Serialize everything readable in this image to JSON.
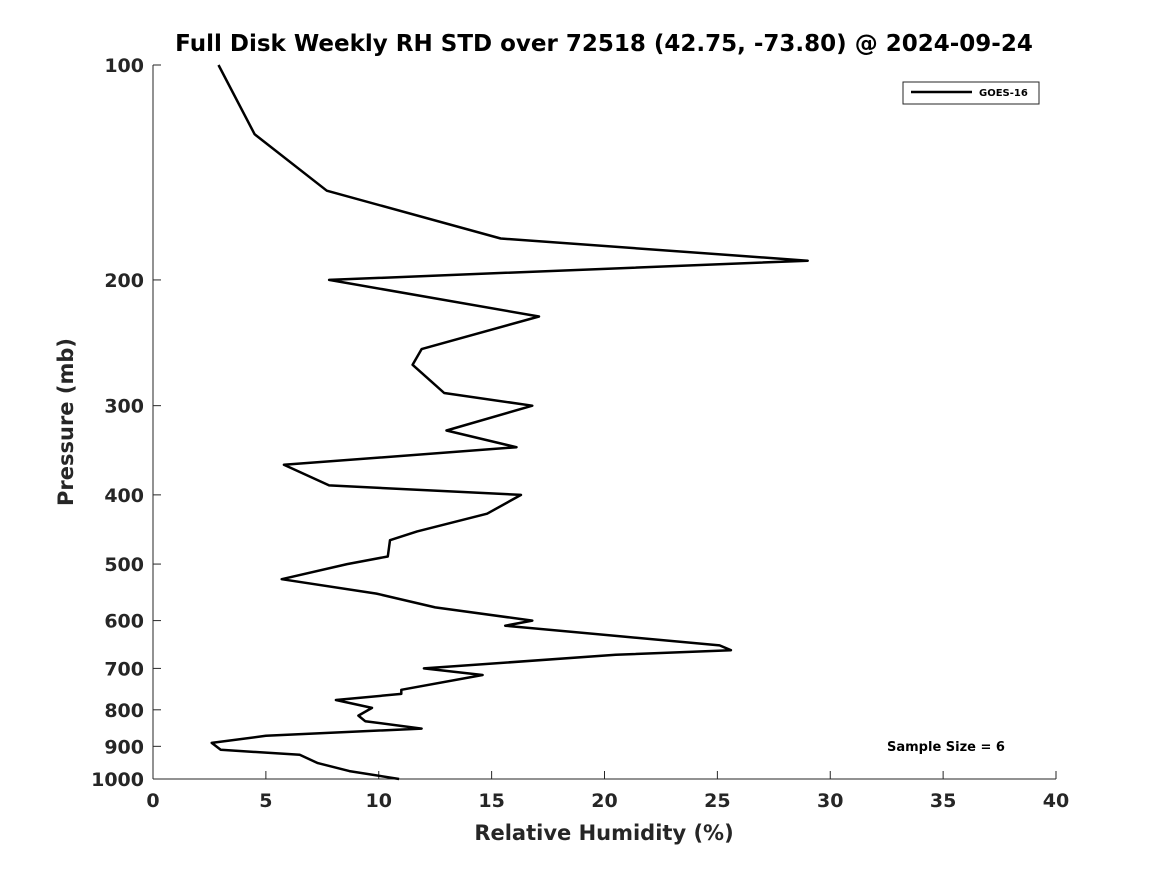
{
  "chart_data": {
    "type": "line",
    "title": "Full Disk Weekly RH STD over 72518 (42.75, -73.80) @ 2024-09-24",
    "xlabel": "Relative Humidity (%)",
    "ylabel": "Pressure (mb)",
    "xlim": [
      0,
      40
    ],
    "ylim": [
      100,
      1000
    ],
    "yscale": "log",
    "y_reversed": true,
    "xticks": [
      "0",
      "5",
      "10",
      "15",
      "20",
      "25",
      "30",
      "35",
      "40"
    ],
    "xtick_values": [
      0,
      5,
      10,
      15,
      20,
      25,
      30,
      35,
      40
    ],
    "yticks": [
      "100",
      "200",
      "300",
      "400",
      "500",
      "600",
      "700",
      "800",
      "900",
      "1000"
    ],
    "ytick_values": [
      100,
      200,
      300,
      400,
      500,
      600,
      700,
      800,
      900,
      1000
    ],
    "grid": false,
    "legend_position": "top-right",
    "series": [
      {
        "name": "GOES-16",
        "color": "#000000",
        "x": [
          2.9,
          4.5,
          7.7,
          15.4,
          29.0,
          7.8,
          17.1,
          11.9,
          11.5,
          12.9,
          16.8,
          13.0,
          16.1,
          5.8,
          7.8,
          16.3,
          14.8,
          11.7,
          10.5,
          10.4,
          8.6,
          5.7,
          9.9,
          12.5,
          16.8,
          15.6,
          25.1,
          25.6,
          20.5,
          12.0,
          14.6,
          11.0,
          11.0,
          8.1,
          9.7,
          9.1,
          9.4,
          11.9,
          5.0,
          2.6,
          3.0,
          6.5,
          7.3,
          8.7,
          10.9
        ],
        "y": [
          100,
          125,
          150,
          175,
          188,
          200,
          225,
          250,
          263,
          288,
          300,
          325,
          343,
          363,
          388,
          400,
          425,
          450,
          463,
          488,
          500,
          525,
          550,
          575,
          600,
          610,
          650,
          660,
          670,
          700,
          715,
          750,
          760,
          775,
          795,
          815,
          830,
          850,
          870,
          890,
          910,
          925,
          950,
          975,
          1000
        ]
      }
    ],
    "annotations": [
      "Sample Size = 6"
    ]
  }
}
